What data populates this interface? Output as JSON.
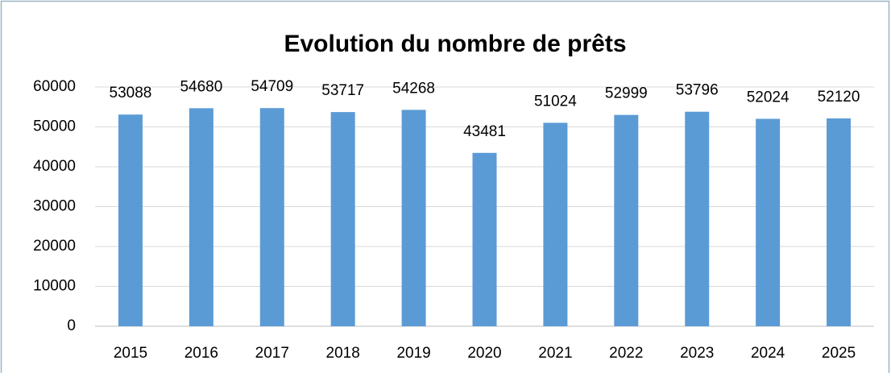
{
  "chart_data": {
    "type": "bar",
    "title": "Evolution du nombre de prêts",
    "categories": [
      "2015",
      "2016",
      "2017",
      "2018",
      "2019",
      "2020",
      "2021",
      "2022",
      "2023",
      "2024",
      "2025"
    ],
    "values": [
      53088,
      54680,
      54709,
      53717,
      54268,
      43481,
      51024,
      52999,
      53796,
      52024,
      52120
    ],
    "color": "#5b9bd5",
    "ylim": [
      0,
      60000
    ],
    "yticks": [
      0,
      10000,
      20000,
      30000,
      40000,
      50000,
      60000
    ],
    "grid": true
  }
}
